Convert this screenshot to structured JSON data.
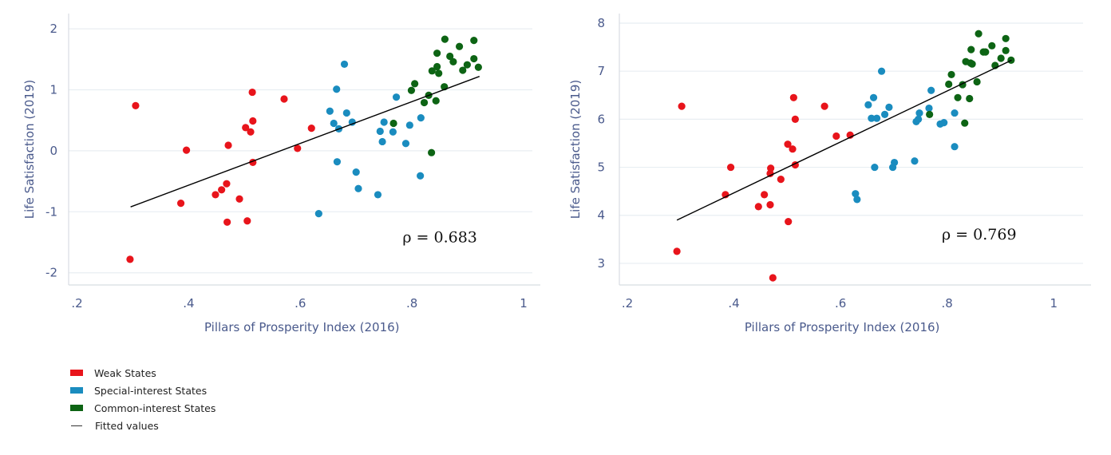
{
  "colors": {
    "weak": "#e8141b",
    "special": "#1a8cbf",
    "common": "#0d6414",
    "fit": "#000000",
    "axis_text": "#4a5a8c",
    "grid": "#e8eef2",
    "spine": "#d8dde2"
  },
  "legend": [
    {
      "key": "weak",
      "label": "Weak States",
      "kind": "swatch"
    },
    {
      "key": "special",
      "label": "Special-interest States",
      "kind": "swatch"
    },
    {
      "key": "common",
      "label": "Common-interest States",
      "kind": "swatch"
    },
    {
      "key": "fit",
      "label": "Fitted values",
      "kind": "line"
    }
  ],
  "chart_data": [
    {
      "type": "scatter",
      "title": "",
      "xlabel": "Pillars of Prosperity Index (2016)",
      "ylabel": "Life Satisfaction (2019)",
      "xlim": [
        0.185,
        1.03
      ],
      "ylim": [
        -2.2,
        2.25
      ],
      "xticks": [
        0.2,
        0.4,
        0.6,
        0.8,
        1.0
      ],
      "xtick_labels": [
        ".2",
        ".4",
        ".6",
        ".8",
        "1"
      ],
      "yticks": [
        -2,
        -1,
        0,
        1,
        2
      ],
      "ytick_labels": [
        "-2",
        "-1",
        "0",
        "1",
        "2"
      ],
      "grid": "horizontal",
      "annotation": "ρ = 0.683",
      "annotation_pos": [
        0.85,
        -1.5
      ],
      "fit_line": {
        "x": [
          0.296,
          0.921
        ],
        "y": [
          -0.92,
          1.22
        ]
      },
      "series": [
        {
          "name": "Weak States",
          "key": "weak",
          "points": [
            [
              0.295,
              -1.78
            ],
            [
              0.305,
              0.74
            ],
            [
              0.386,
              -0.86
            ],
            [
              0.396,
              0.01
            ],
            [
              0.448,
              -0.72
            ],
            [
              0.459,
              -0.64
            ],
            [
              0.468,
              -0.54
            ],
            [
              0.469,
              -1.17
            ],
            [
              0.471,
              0.09
            ],
            [
              0.491,
              -0.79
            ],
            [
              0.502,
              0.38
            ],
            [
              0.505,
              -1.15
            ],
            [
              0.511,
              0.31
            ],
            [
              0.514,
              0.96
            ],
            [
              0.515,
              0.49
            ],
            [
              0.515,
              -0.19
            ],
            [
              0.571,
              0.85
            ],
            [
              0.595,
              0.04
            ],
            [
              0.62,
              0.37
            ]
          ]
        },
        {
          "name": "Special-interest States",
          "key": "special",
          "points": [
            [
              0.633,
              -1.03
            ],
            [
              0.653,
              0.65
            ],
            [
              0.66,
              0.45
            ],
            [
              0.665,
              1.01
            ],
            [
              0.666,
              -0.18
            ],
            [
              0.669,
              0.36
            ],
            [
              0.679,
              1.42
            ],
            [
              0.683,
              0.62
            ],
            [
              0.693,
              0.47
            ],
            [
              0.7,
              -0.35
            ],
            [
              0.704,
              -0.62
            ],
            [
              0.739,
              -0.72
            ],
            [
              0.743,
              0.32
            ],
            [
              0.747,
              0.15
            ],
            [
              0.75,
              0.47
            ],
            [
              0.766,
              0.31
            ],
            [
              0.772,
              0.88
            ],
            [
              0.789,
              0.12
            ],
            [
              0.796,
              0.42
            ],
            [
              0.815,
              -0.41
            ],
            [
              0.816,
              0.54
            ]
          ]
        },
        {
          "name": "Common-interest States",
          "key": "common",
          "points": [
            [
              0.767,
              0.45
            ],
            [
              0.799,
              0.99
            ],
            [
              0.805,
              1.1
            ],
            [
              0.822,
              0.79
            ],
            [
              0.83,
              0.91
            ],
            [
              0.835,
              -0.03
            ],
            [
              0.836,
              1.31
            ],
            [
              0.843,
              0.82
            ],
            [
              0.845,
              1.38
            ],
            [
              0.845,
              1.6
            ],
            [
              0.848,
              1.27
            ],
            [
              0.858,
              1.05
            ],
            [
              0.859,
              1.83
            ],
            [
              0.868,
              1.55
            ],
            [
              0.874,
              1.46
            ],
            [
              0.885,
              1.71
            ],
            [
              0.891,
              1.32
            ],
            [
              0.899,
              1.41
            ],
            [
              0.911,
              1.81
            ],
            [
              0.911,
              1.51
            ],
            [
              0.919,
              1.37
            ]
          ]
        }
      ]
    },
    {
      "type": "scatter",
      "title": "",
      "xlabel": "Pillars of Prosperity Index (2016)",
      "ylabel": "Life Satisfaction (2019)",
      "xlim": [
        0.185,
        1.07
      ],
      "ylim": [
        2.55,
        8.2
      ],
      "xticks": [
        0.2,
        0.4,
        0.6,
        0.8,
        1.0
      ],
      "xtick_labels": [
        ".2",
        ".4",
        ".6",
        ".8",
        "1"
      ],
      "yticks": [
        3,
        4,
        5,
        6,
        7,
        8
      ],
      "ytick_labels": [
        "3",
        "4",
        "5",
        "6",
        "7",
        "8"
      ],
      "grid": "horizontal",
      "annotation": "ρ = 0.769",
      "annotation_pos": [
        0.86,
        3.5
      ],
      "fit_line": {
        "x": [
          0.293,
          0.921
        ],
        "y": [
          3.9,
          7.23
        ]
      },
      "series": [
        {
          "name": "Weak States",
          "key": "weak",
          "points": [
            [
              0.293,
              3.25
            ],
            [
              0.302,
              6.27
            ],
            [
              0.384,
              4.43
            ],
            [
              0.394,
              5.0
            ],
            [
              0.446,
              4.18
            ],
            [
              0.457,
              4.43
            ],
            [
              0.468,
              4.22
            ],
            [
              0.468,
              4.87
            ],
            [
              0.469,
              4.98
            ],
            [
              0.473,
              2.7
            ],
            [
              0.488,
              4.75
            ],
            [
              0.502,
              3.87
            ],
            [
              0.501,
              5.48
            ],
            [
              0.51,
              5.38
            ],
            [
              0.512,
              6.45
            ],
            [
              0.515,
              6.0
            ],
            [
              0.515,
              5.05
            ],
            [
              0.57,
              6.27
            ],
            [
              0.592,
              5.65
            ],
            [
              0.618,
              5.67
            ]
          ]
        },
        {
          "name": "Special-interest States",
          "key": "special",
          "points": [
            [
              0.628,
              4.45
            ],
            [
              0.631,
              4.33
            ],
            [
              0.652,
              6.3
            ],
            [
              0.662,
              6.45
            ],
            [
              0.664,
              5.0
            ],
            [
              0.658,
              6.02
            ],
            [
              0.668,
              6.02
            ],
            [
              0.677,
              7.0
            ],
            [
              0.683,
              6.1
            ],
            [
              0.691,
              6.25
            ],
            [
              0.698,
              5.0
            ],
            [
              0.701,
              5.1
            ],
            [
              0.739,
              5.13
            ],
            [
              0.742,
              5.95
            ],
            [
              0.746,
              6.0
            ],
            [
              0.748,
              6.13
            ],
            [
              0.766,
              6.23
            ],
            [
              0.77,
              6.6
            ],
            [
              0.787,
              5.9
            ],
            [
              0.794,
              5.93
            ],
            [
              0.814,
              5.43
            ],
            [
              0.814,
              6.13
            ]
          ]
        },
        {
          "name": "Common-interest States",
          "key": "common",
          "points": [
            [
              0.767,
              6.1
            ],
            [
              0.803,
              6.73
            ],
            [
              0.808,
              6.93
            ],
            [
              0.82,
              6.45
            ],
            [
              0.829,
              6.72
            ],
            [
              0.833,
              5.92
            ],
            [
              0.835,
              7.2
            ],
            [
              0.842,
              6.43
            ],
            [
              0.844,
              7.17
            ],
            [
              0.845,
              7.45
            ],
            [
              0.847,
              7.15
            ],
            [
              0.856,
              6.78
            ],
            [
              0.859,
              7.78
            ],
            [
              0.868,
              7.4
            ],
            [
              0.872,
              7.4
            ],
            [
              0.884,
              7.53
            ],
            [
              0.89,
              7.12
            ],
            [
              0.901,
              7.27
            ],
            [
              0.91,
              7.68
            ],
            [
              0.91,
              7.43
            ],
            [
              0.92,
              7.23
            ]
          ]
        }
      ]
    }
  ]
}
